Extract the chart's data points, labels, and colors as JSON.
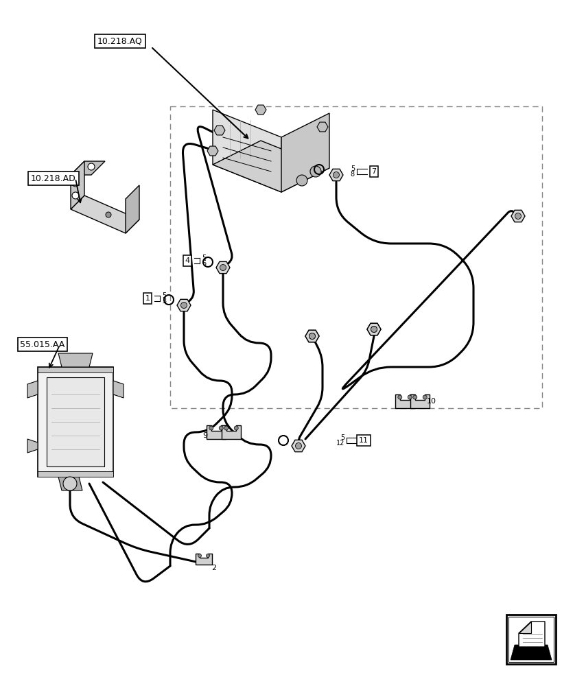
{
  "bg_color": "#ffffff",
  "lc": "#000000",
  "label_AQ": "10.218.AQ",
  "label_AD": "10.218.AD",
  "label_55": "55.015.AA",
  "figsize": [
    8.2,
    10.0
  ],
  "dpi": 100
}
